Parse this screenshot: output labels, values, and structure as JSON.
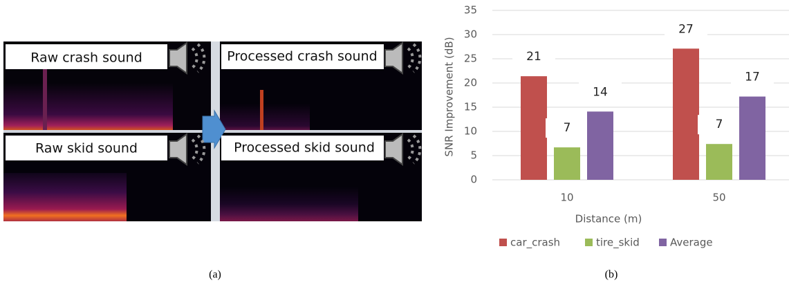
{
  "panel_a": {
    "labels": [
      "Raw crash sound",
      "Processed crash sound",
      "Raw skid sound",
      "Processed skid sound"
    ],
    "caption": "(a)"
  },
  "chart_data": {
    "type": "bar",
    "caption": "(b)",
    "x_label": "Distance (m)",
    "y_label": "SNR Improvement (dB)",
    "categories": [
      "10",
      "50"
    ],
    "series": [
      {
        "name": "car_crash",
        "color": "#c0504d",
        "values": [
          21.4,
          27.1
        ],
        "value_labels": [
          "21",
          "27"
        ]
      },
      {
        "name": "tire_skid",
        "color": "#9bbb59",
        "values": [
          6.7,
          7.4
        ],
        "value_labels": [
          "7",
          "7"
        ]
      },
      {
        "name": "Average",
        "color": "#8064a2",
        "values": [
          14.1,
          17.2
        ],
        "value_labels": [
          "14",
          "17"
        ]
      }
    ],
    "ylim": [
      0,
      35
    ],
    "yticks": [
      0,
      5,
      10,
      15,
      20,
      25,
      30,
      35
    ],
    "grid": true,
    "legend": "bottom"
  }
}
